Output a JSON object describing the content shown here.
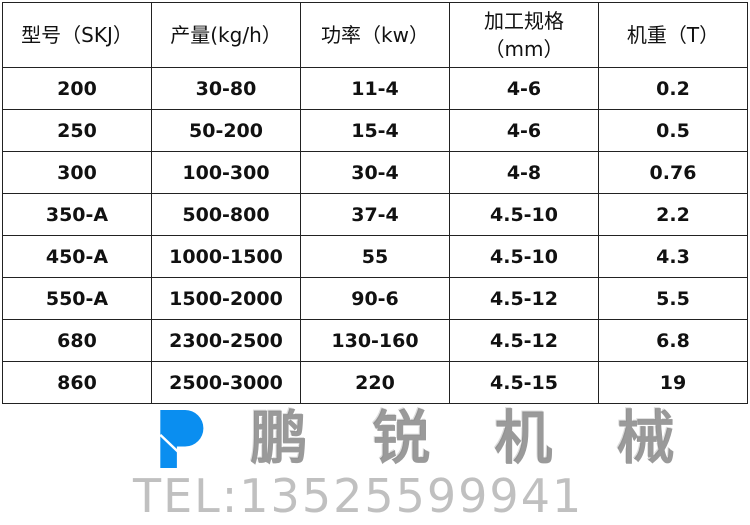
{
  "table": {
    "headers": [
      "型号（SKJ）",
      "产量(kg/h）",
      "功率（kw）",
      "加工规格（mm）",
      "机重（T）"
    ],
    "rows": [
      [
        "200",
        "30-80",
        "11-4",
        "4-6",
        "0.2"
      ],
      [
        "250",
        "50-200",
        "15-4",
        "4-6",
        "0.5"
      ],
      [
        "300",
        "100-300",
        "30-4",
        "4-8",
        "0.76"
      ],
      [
        "350-A",
        "500-800",
        "37-4",
        "4.5-10",
        "2.2"
      ],
      [
        "450-A",
        "1000-1500",
        "55",
        "4.5-10",
        "4.3"
      ],
      [
        "550-A",
        "1500-2000",
        "90-6",
        "4.5-12",
        "5.5"
      ],
      [
        "680",
        "2300-2500",
        "130-160",
        "4.5-12",
        "6.8"
      ],
      [
        "860",
        "2500-3000",
        "220",
        "4.5-15",
        "19"
      ]
    ]
  },
  "watermark": {
    "company": "鹏 锐 机 械",
    "tel": "TEL:13525599941",
    "logo_color": "#0a8ef0"
  }
}
